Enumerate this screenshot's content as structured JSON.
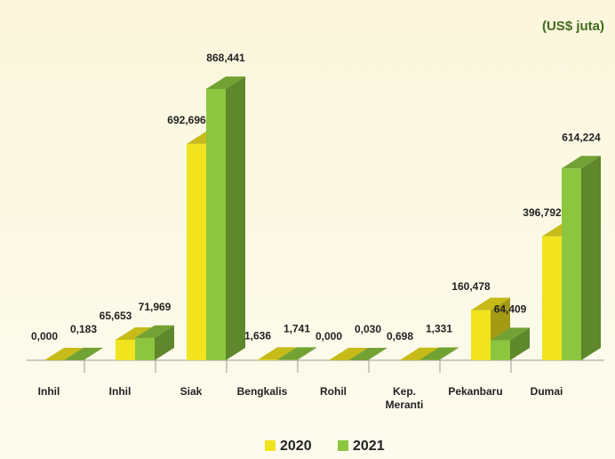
{
  "chart_data": {
    "type": "bar3d",
    "unit_label": "(US$   juta)",
    "categories": [
      "Inhil",
      "Inhil",
      "Siak",
      "Bengkalis",
      "Rohil",
      "Kep. Meranti",
      "Pekanbaru",
      "Dumai"
    ],
    "series": [
      {
        "name": "2020",
        "color": "#f1e41f",
        "values": [
          0.0,
          65.653,
          692.696,
          1.636,
          0.0,
          0.698,
          160.478,
          396.792
        ],
        "value_labels": [
          "0,000",
          "65,653",
          "692,696",
          "1,636",
          "0,000",
          "0,698",
          "160,478",
          "396,792"
        ]
      },
      {
        "name": "2021",
        "color": "#8cc63f",
        "values": [
          0.183,
          71.969,
          868.441,
          1.741,
          0.03,
          1.331,
          64.409,
          614.224
        ],
        "value_labels": [
          "0,183",
          "71,969",
          "868,441",
          "1,741",
          "0,030",
          "1,331",
          "64,409",
          "614,224"
        ]
      }
    ]
  }
}
